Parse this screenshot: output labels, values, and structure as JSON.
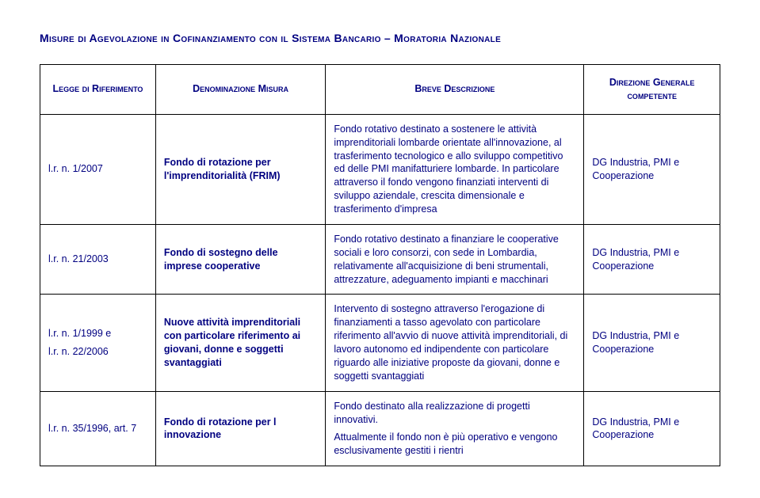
{
  "title": "Misure di Agevolazione in Cofinanziamento con il Sistema Bancario – Moratoria Nazionale",
  "columns": {
    "c1": "Legge di Riferimento",
    "c2": "Denominazione Misura",
    "c3": "Breve Descrizione",
    "c4": "Direzione Generale competente"
  },
  "rows": [
    {
      "legge": "l.r. n. 1/2007",
      "denominazione": "Fondo di rotazione per l'imprenditorialità (FRIM)",
      "descrizione": "Fondo rotativo destinato a sostenere le attività imprenditoriali lombarde orientate all'innovazione, al trasferimento tecnologico e allo sviluppo competitivo ed delle PMI manifatturiere lombarde. In particolare attraverso il fondo vengono finanziati interventi di sviluppo aziendale, crescita dimensionale e trasferimento d'impresa",
      "direzione": "DG Industria, PMI e Cooperazione"
    },
    {
      "legge": "l.r. n. 21/2003",
      "denominazione": "Fondo di sostegno delle imprese cooperative",
      "descrizione": "Fondo rotativo destinato a finanziare le cooperative sociali e loro consorzi, con sede in Lombardia, relativamente all'acquisizione di beni strumentali, attrezzature, adeguamento impianti e macchinari",
      "direzione": "DG Industria, PMI e Cooperazione"
    },
    {
      "legge": "l.r. n. 1/1999 e\nl.r. n. 22/2006",
      "denominazione": "Nuove attività imprenditoriali con particolare riferimento ai giovani, donne e soggetti svantaggiati",
      "descrizione": "Intervento di sostegno attraverso l'erogazione di finanziamenti a tasso agevolato con particolare riferimento all'avvio di nuove attività imprenditoriali, di lavoro autonomo ed indipendente con particolare riguardo alle iniziative proposte da giovani, donne e soggetti svantaggiati",
      "direzione": "DG Industria, PMI e Cooperazione"
    },
    {
      "legge": "l.r. n. 35/1996, art. 7",
      "denominazione": "Fondo di rotazione per l innovazione",
      "descrizione": "Fondo destinato alla realizzazione di progetti innovativi.\nAttualmente il fondo non è più operativo e vengono esclusivamente gestiti i rientri",
      "direzione": "DG Industria, PMI e Cooperazione"
    }
  ]
}
